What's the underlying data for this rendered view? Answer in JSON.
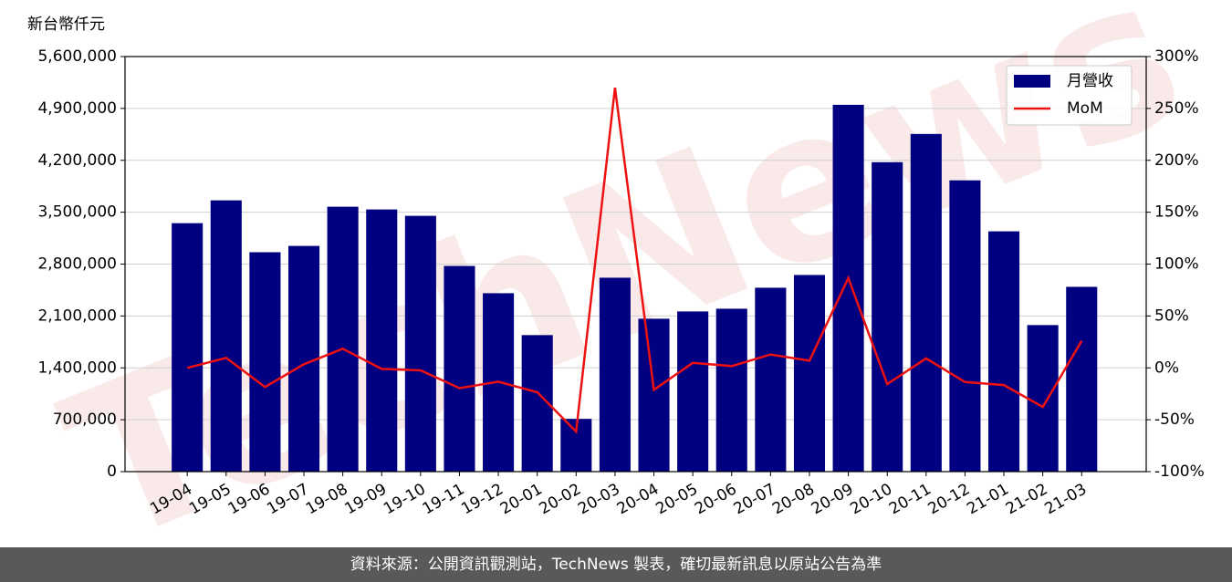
{
  "chart_data": {
    "type": "bar-line",
    "unit_label": "新台幣仟元",
    "watermark": "TechNews",
    "categories": [
      "19-04",
      "19-05",
      "19-06",
      "19-07",
      "19-08",
      "19-09",
      "19-10",
      "19-11",
      "19-12",
      "20-01",
      "20-02",
      "20-03",
      "20-04",
      "20-05",
      "20-06",
      "20-07",
      "20-08",
      "20-09",
      "20-10",
      "20-11",
      "20-12",
      "21-01",
      "21-02",
      "21-03"
    ],
    "series": [
      {
        "name": "月營收",
        "type": "bar",
        "color": "#000080",
        "values": [
          3352000,
          3660000,
          2960000,
          3045000,
          3574000,
          3537000,
          3451000,
          2775000,
          2407000,
          1842000,
          712000,
          2616000,
          2063000,
          2161000,
          2198000,
          2481000,
          2653000,
          4949000,
          4175000,
          4556000,
          3930000,
          3242000,
          1977000,
          2493000
        ]
      },
      {
        "name": "MoM",
        "type": "line",
        "axis": "y2",
        "color": "#ee1111",
        "values": [
          0,
          9.6,
          -18.4,
          3.5,
          18.4,
          -1,
          -2.4,
          -19.6,
          -13.3,
          -23.5,
          -61.4,
          270,
          -21.1,
          4.8,
          1.7,
          12.9,
          6.9,
          86.6,
          -15.6,
          9.1,
          -13.7,
          -16.6,
          -37.7,
          26.1
        ]
      }
    ],
    "ylim": [
      0,
      5600000
    ],
    "yticks": [
      0,
      {
        "value": 700000,
        "label": "700,000"
      },
      {
        "value": 1400000,
        "label": "1,400,000"
      },
      {
        "value": 2100000,
        "label": "2,100,000"
      },
      {
        "value": 2800000,
        "label": "2,800,000"
      },
      {
        "value": 3500000,
        "label": "3,500,000"
      },
      {
        "value": 4200000,
        "label": "4,200,000"
      },
      {
        "value": 4900000,
        "label": "4,900,000"
      },
      {
        "value": 5600000,
        "label": "5,600,000"
      }
    ],
    "y2lim": [
      -100,
      300
    ],
    "y2ticks": [
      {
        "value": -100,
        "label": "-100%"
      },
      {
        "value": -50,
        "label": "-50%"
      },
      {
        "value": 0,
        "label": "0%"
      },
      {
        "value": 50,
        "label": "50%"
      },
      {
        "value": 100,
        "label": "100%"
      },
      {
        "value": 150,
        "label": "150%"
      },
      {
        "value": 200,
        "label": "200%"
      },
      {
        "value": 250,
        "label": "250%"
      },
      {
        "value": 300,
        "label": "300%"
      }
    ],
    "grid": true,
    "legend": "upper right",
    "footer": "資料來源：公開資訊觀測站，TechNews 製表，確切最新訊息以原站公告為準"
  }
}
